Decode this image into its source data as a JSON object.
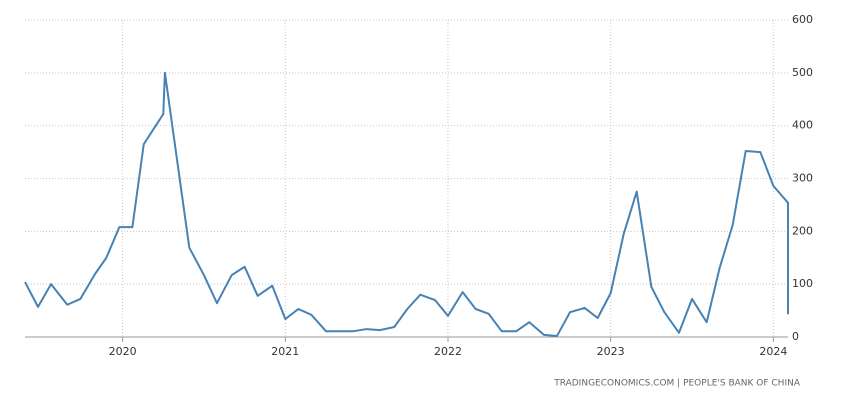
{
  "chart_data": {
    "type": "line",
    "source": "TRADINGECONOMICS.COM | PEOPLE'S BANK OF CHINA",
    "x": [
      2019.4,
      2019.48,
      2019.56,
      2019.66,
      2019.74,
      2019.83,
      2019.9,
      2019.98,
      2020.06,
      2020.13,
      2020.25,
      2020.26,
      2020.41,
      2020.5,
      2020.58,
      2020.67,
      2020.75,
      2020.83,
      2020.92,
      2021.0,
      2021.08,
      2021.16,
      2021.25,
      2021.33,
      2021.42,
      2021.5,
      2021.58,
      2021.67,
      2021.75,
      2021.83,
      2021.92,
      2022.0,
      2022.09,
      2022.17,
      2022.25,
      2022.33,
      2022.42,
      2022.5,
      2022.59,
      2022.67,
      2022.75,
      2022.84,
      2022.92,
      2023.0,
      2023.08,
      2023.16,
      2023.25,
      2023.33,
      2023.42,
      2023.5,
      2023.59,
      2023.67,
      2023.75,
      2023.83,
      2023.92,
      2024.0,
      2024.09,
      2024.09
    ],
    "series": [
      {
        "color": "#4682b4",
        "values": [
          104,
          57,
          100,
          61,
          72,
          119,
          150,
          208,
          208,
          365,
          422,
          500,
          169,
          117,
          64,
          117,
          133,
          78,
          97,
          34,
          53,
          42,
          11,
          11,
          11,
          15,
          13,
          19,
          53,
          80,
          70,
          40,
          85,
          53,
          44,
          11,
          11,
          28,
          4,
          2,
          47,
          55,
          36,
          83,
          195,
          275,
          95,
          47,
          8,
          72,
          28,
          131,
          212,
          352,
          350,
          286,
          254,
          43
        ]
      }
    ],
    "xlim": [
      2019.4,
      2024.09
    ],
    "xticks": [
      2020,
      2021,
      2022,
      2023,
      2024
    ],
    "ylim": [
      0,
      600
    ],
    "yticks": [
      0,
      100,
      200,
      300,
      400,
      500,
      600
    ],
    "grid": true
  }
}
